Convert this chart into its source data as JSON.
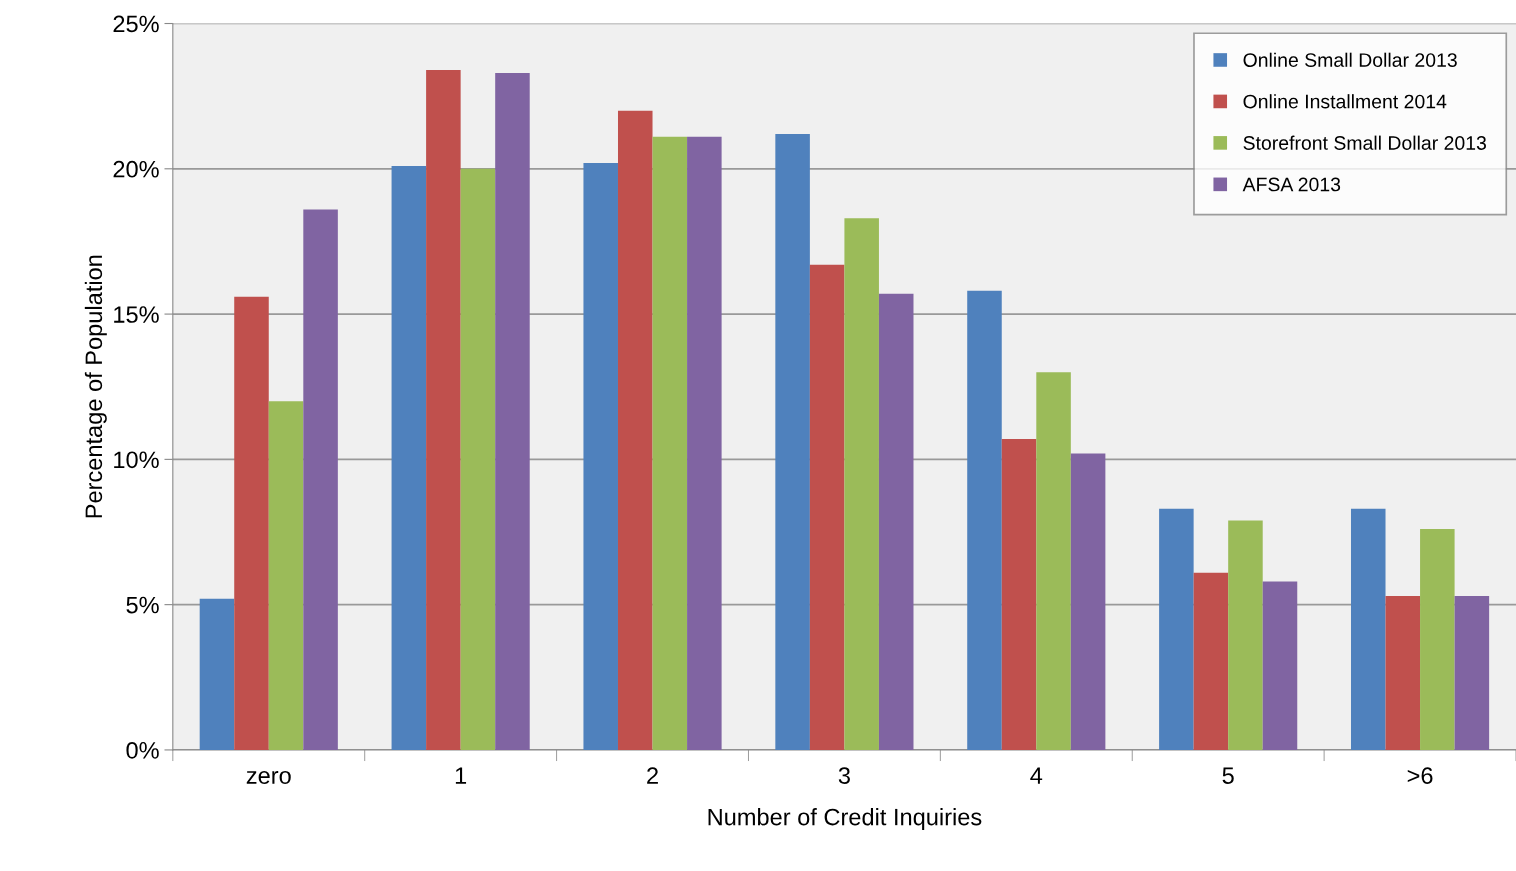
{
  "chart_data": {
    "type": "bar",
    "xlabel": "Number of Credit Inquiries",
    "ylabel": "Percentage of Population",
    "categories": [
      "zero",
      "1",
      "2",
      "3",
      "4",
      "5",
      ">6"
    ],
    "series": [
      {
        "name": "Online Small Dollar 2013",
        "color": "#4f81bd",
        "values": [
          5.2,
          20.1,
          20.2,
          21.2,
          15.8,
          8.3,
          8.3
        ]
      },
      {
        "name": "Online Installment 2014",
        "color": "#c0504d",
        "values": [
          15.6,
          23.4,
          22.0,
          16.7,
          10.7,
          6.1,
          5.3
        ]
      },
      {
        "name": "Storefront Small Dollar 2013",
        "color": "#9bbb59",
        "values": [
          12.0,
          20.0,
          21.1,
          18.3,
          13.0,
          7.9,
          7.6
        ]
      },
      {
        "name": "AFSA 2013",
        "color": "#8064a2",
        "values": [
          18.6,
          23.3,
          21.1,
          15.7,
          10.2,
          5.8,
          5.3
        ]
      }
    ],
    "ylim": [
      0,
      25
    ],
    "yticks": [
      {
        "value": 0,
        "label": "0%"
      },
      {
        "value": 5,
        "label": "5%"
      },
      {
        "value": 10,
        "label": "10%"
      },
      {
        "value": 15,
        "label": "15%"
      },
      {
        "value": 20,
        "label": "20%"
      },
      {
        "value": 25,
        "label": "25%"
      }
    ],
    "grid": "y",
    "legend": "top right"
  }
}
